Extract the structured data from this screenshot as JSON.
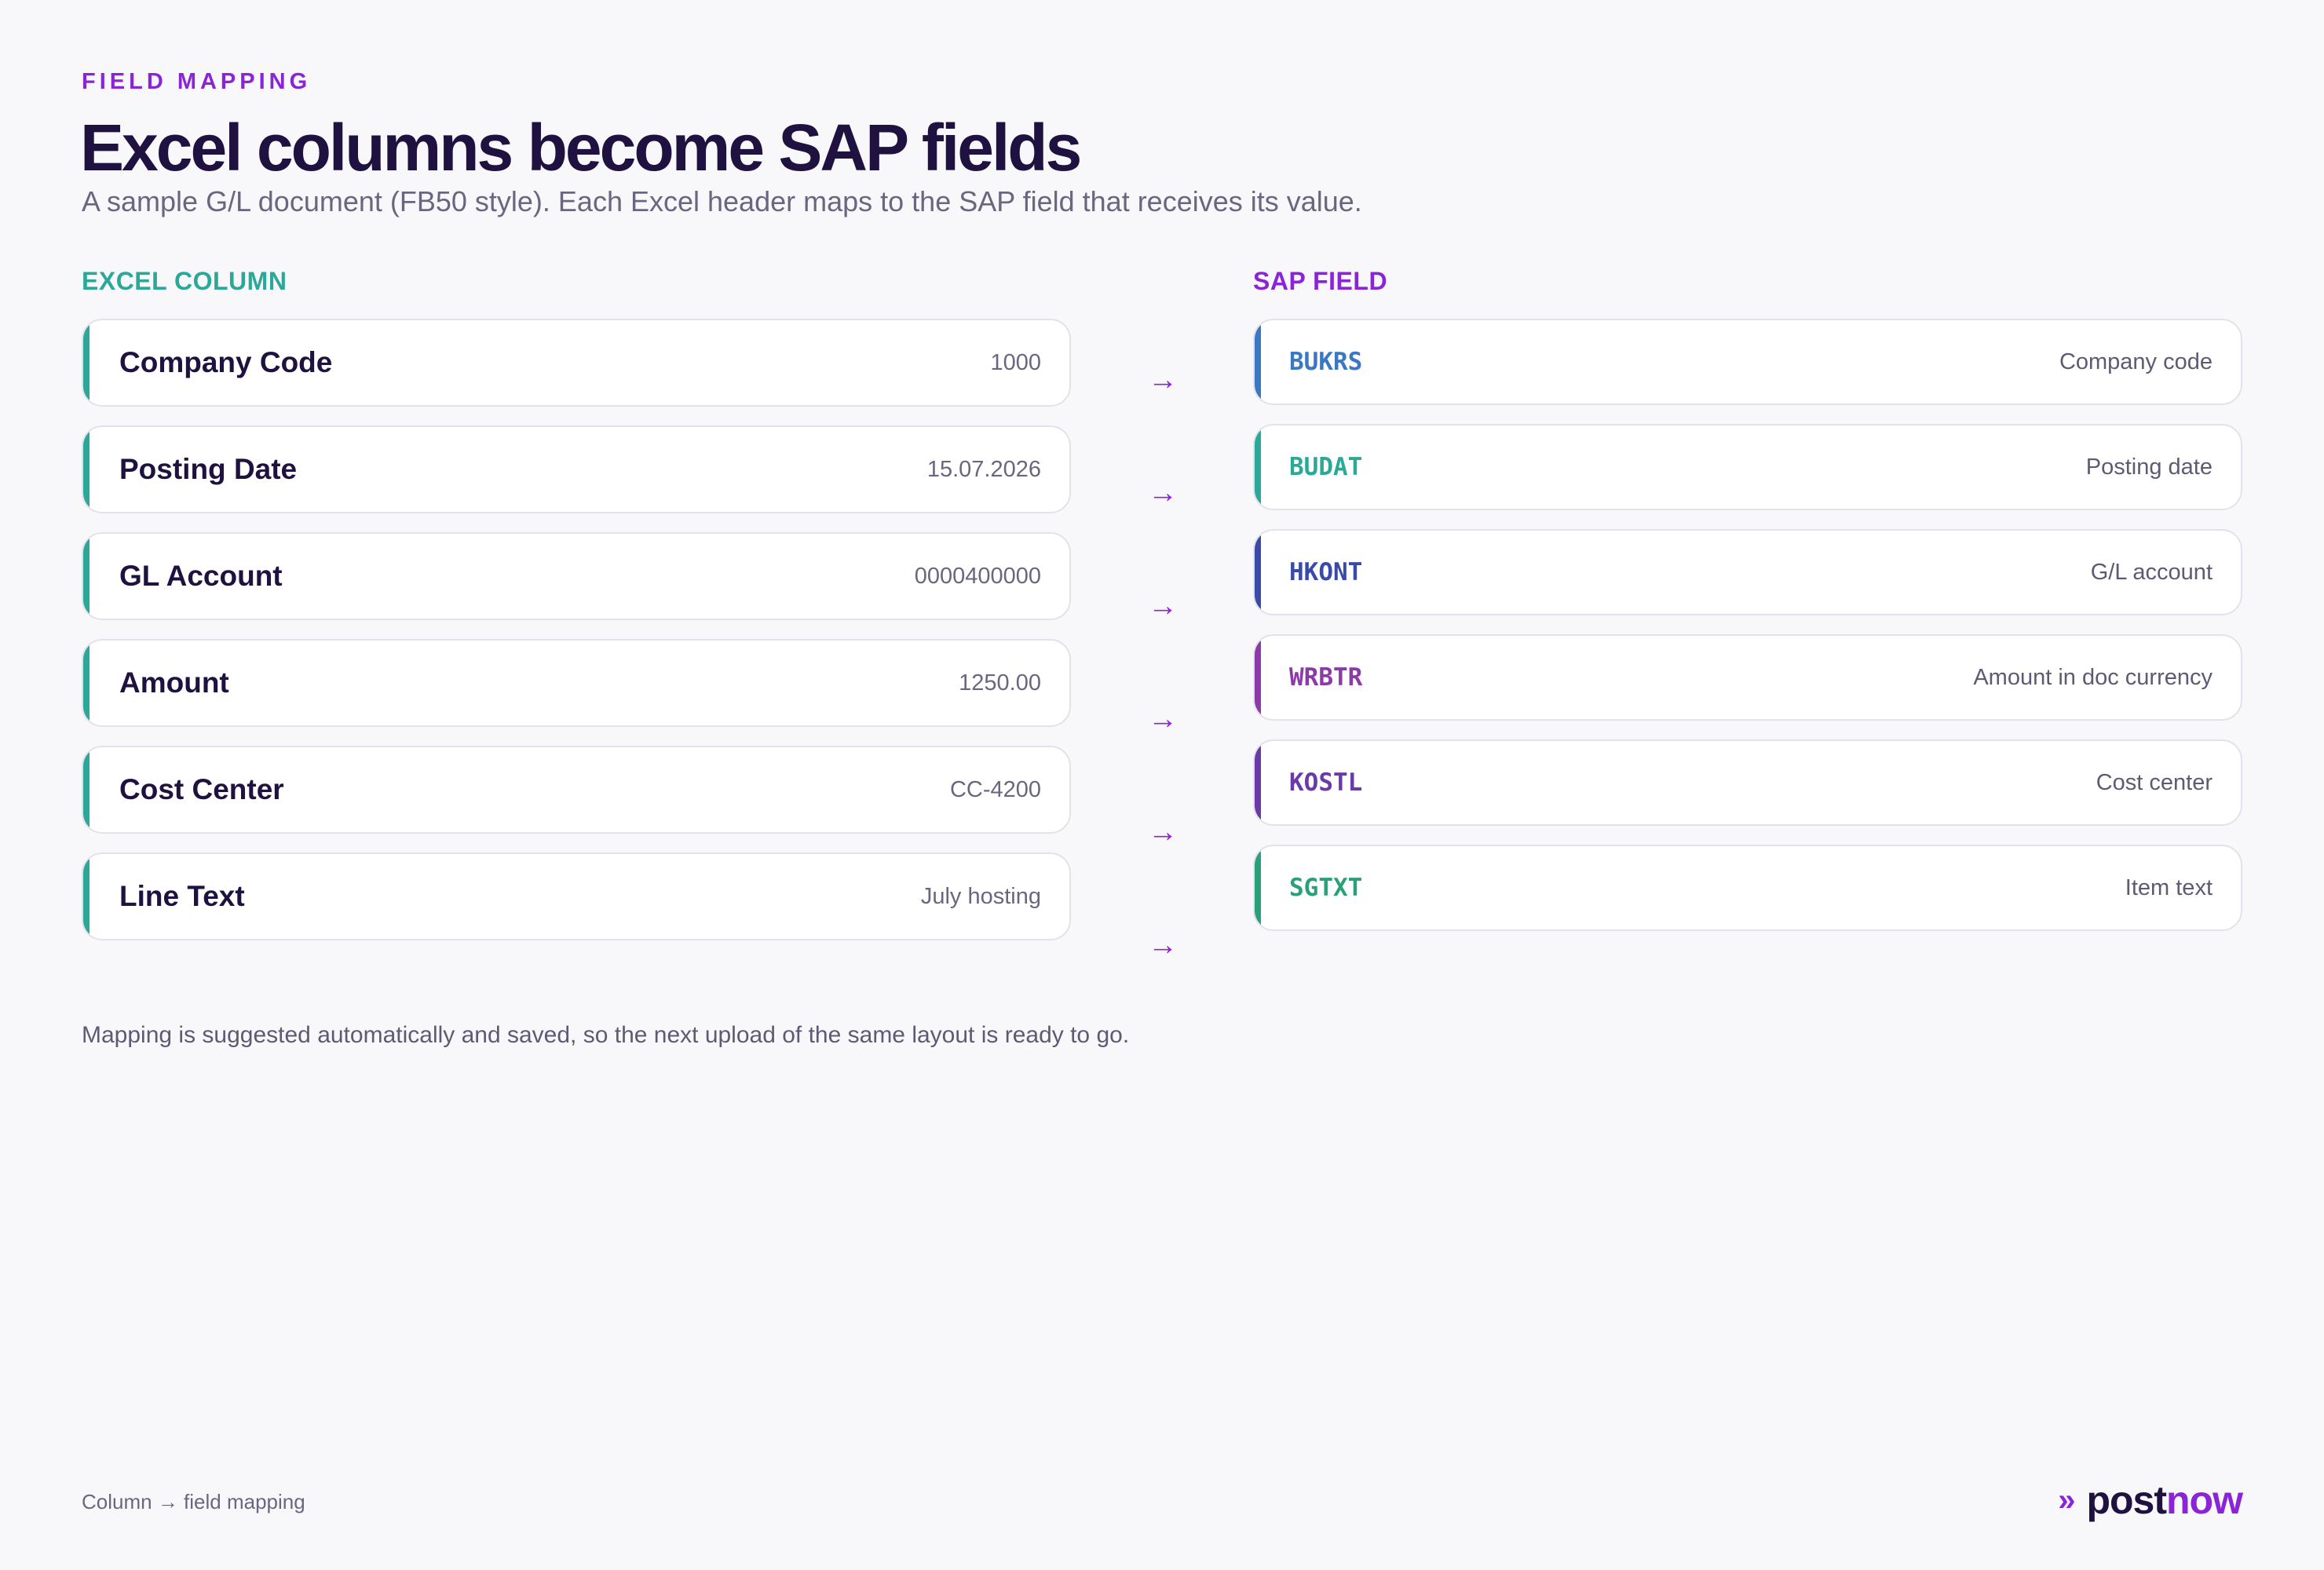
{
  "header": {
    "eyebrow": "FIELD MAPPING",
    "title": "Excel columns become SAP fields",
    "subtitle": "A sample G/L document (FB50 style). Each Excel header maps to the SAP field that receives its value."
  },
  "columns": {
    "excel_heading": "EXCEL COLUMN",
    "sap_heading": "SAP FIELD"
  },
  "excel_columns": [
    {
      "name": "Company Code",
      "value": "1000"
    },
    {
      "name": "Posting Date",
      "value": "15.07.2026"
    },
    {
      "name": "GL Account",
      "value": "0000400000"
    },
    {
      "name": "Amount",
      "value": "1250.00"
    },
    {
      "name": "Cost Center",
      "value": "CC-4200"
    },
    {
      "name": "Line Text",
      "value": "July hosting"
    }
  ],
  "sap_fields": [
    {
      "code": "BUKRS",
      "desc": "Company code",
      "color": "#3a78c4"
    },
    {
      "code": "BUDAT",
      "desc": "Posting date",
      "color": "#2aa898"
    },
    {
      "code": "HKONT",
      "desc": "G/L account",
      "color": "#3a4aa8"
    },
    {
      "code": "WRBTR",
      "desc": "Amount in doc currency",
      "color": "#8b3aa8"
    },
    {
      "code": "KOSTL",
      "desc": "Cost center",
      "color": "#6a3aa8"
    },
    {
      "code": "SGTXT",
      "desc": "Item text",
      "color": "#2aa07a"
    }
  ],
  "arrow_glyph": "→",
  "note": "Mapping is suggested automatically and saved, so the next upload of the same layout is ready to go.",
  "footer": {
    "label": "Column → field mapping",
    "brand_chevron": "»",
    "brand_part1": "post",
    "brand_part2": "now"
  }
}
